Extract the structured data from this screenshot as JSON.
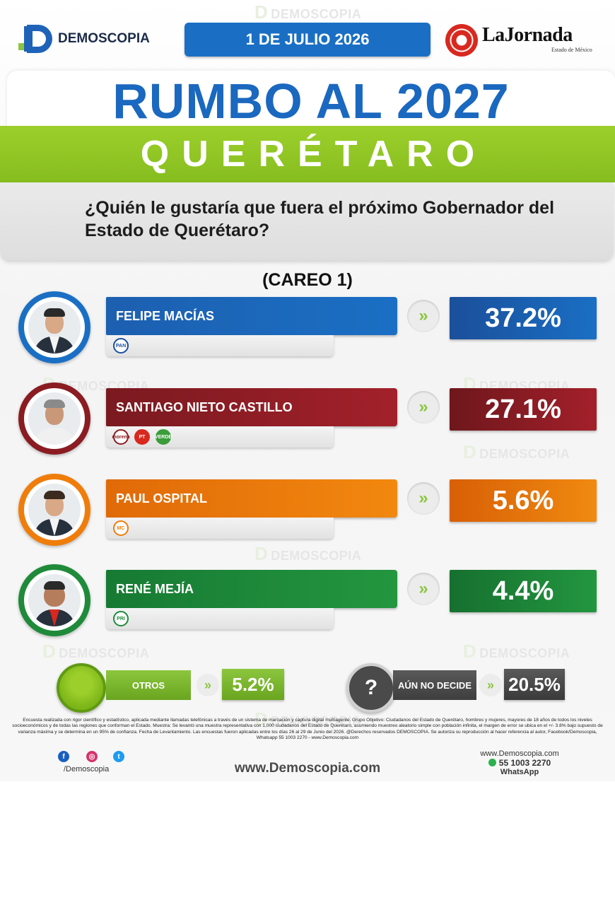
{
  "header": {
    "logo_text": "DEMOSCOPIA",
    "date": "1 DE JULIO 2026",
    "partner_name": "LaJornada",
    "partner_sub": "Estado de México"
  },
  "watermark": "DEMOSCOPIA",
  "title": {
    "main": "RUMBO AL 2027",
    "sub": "QUERÉTARO",
    "question": "¿Quién le gustaría que fuera el próximo Gobernador del Estado de Querétaro?",
    "careo": "(CAREO 1)"
  },
  "colors": {
    "blue": "#1a6fc4",
    "green": "#8cc63f",
    "red": "#8a1c22",
    "orange": "#ef7d0b",
    "dark_green": "#1f8a3a",
    "gray": "#5a5a5a"
  },
  "candidates": [
    {
      "name": "FELIPE MACÍAS",
      "pct_label": "37.2%",
      "parties": [
        "PAN"
      ]
    },
    {
      "name": "SANTIAGO NIETO CASTILLO",
      "pct_label": "27.1%",
      "parties": [
        "morena",
        "PT",
        "VERDE"
      ]
    },
    {
      "name": "PAUL OSPITAL",
      "pct_label": "5.6%",
      "parties": [
        "MC"
      ]
    },
    {
      "name": "RENÉ MEJÍA",
      "pct_label": "4.4%",
      "parties": [
        "PRI"
      ]
    }
  ],
  "others": [
    {
      "label": "OTROS",
      "pct_label": "5.2%"
    },
    {
      "label": "AÚN NO DECIDE",
      "pct_label": "20.5%"
    }
  ],
  "chart_data": {
    "type": "bar",
    "title": "RUMBO AL 2027 QUERÉTARO",
    "categories": [
      "FELIPE MACÍAS",
      "SANTIAGO NIETO CASTILLO",
      "PAUL OSPITAL",
      "RENÉ MEJÍA",
      "OTROS",
      "AÚN NO DECIDE"
    ],
    "values": [
      37.2,
      27.1,
      5.6,
      4.4,
      5.2,
      20.5
    ],
    "unit": "%"
  },
  "footer": {
    "disclaimer": "Encuesta realizada con rigor científico y estadístico, aplicada mediante llamadas telefónicas a través de un sistema de marcación y captura digital multiagente. Grupo Objetivo: Ciudadanos del Estado de Querétaro, hombres y mujeres, mayores de 18 años de todos los niveles socioeconómicos y de todas las regiones que conforman el Estado. Muestra: Se levantó una muestra representativa con 1,000 ciudadanos del Estado de Querétaro, asumiendo muestreo aleatorio simple con población infinita, el margen de error se ubica en el +/- 3.8% bajo supuesto de varianza máxima y se determina en un 95% de confianza. Fecha de Levantamiento. Las encuestas fueron aplicadas entre los días 26 al 29 de Junio del 2026. @Derechos reservados DEMOSCOPIA. Se autoriza su reproducción al hacer referencia al autor, Facebook/Demoscopia, Whatsapp 55 1003 2270 - www.Demoscopia.com",
    "social_handle": "/Demoscopia",
    "site": "www.Demoscopia.com",
    "contact_site": "www.Demoscopia.com",
    "phone": "55 1003 2270",
    "whatsapp": "WhatsApp"
  }
}
